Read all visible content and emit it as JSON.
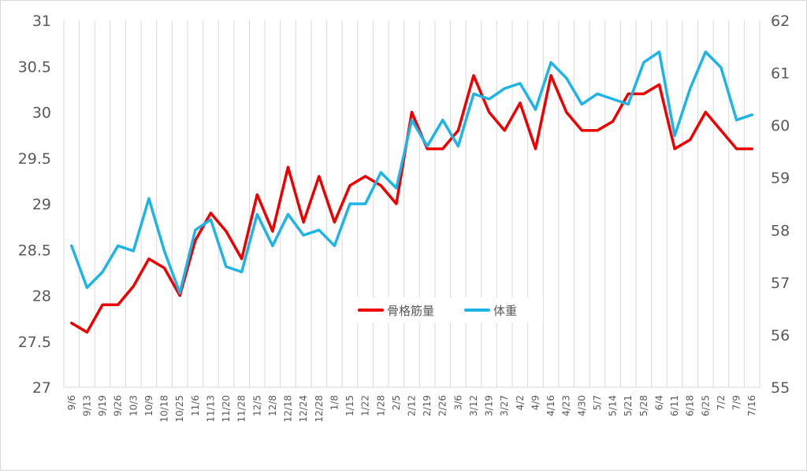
{
  "chart_data": {
    "type": "line",
    "title": "",
    "xlabel": "",
    "ylabel": "",
    "categories": [
      "9/6",
      "9/13",
      "9/19",
      "9/26",
      "10/3",
      "10/9",
      "10/18",
      "10/25",
      "11/6",
      "11/13",
      "11/20",
      "11/28",
      "12/5",
      "12/8",
      "12/18",
      "12/24",
      "12/28",
      "1/8",
      "1/15",
      "1/22",
      "1/28",
      "2/5",
      "2/12",
      "2/19",
      "2/26",
      "3/6",
      "3/12",
      "3/19",
      "3/27",
      "4/2",
      "4/9",
      "4/16",
      "4/23",
      "4/30",
      "5/7",
      "5/14",
      "5/21",
      "5/28",
      "6/4",
      "6/11",
      "6/18",
      "6/25",
      "7/2",
      "7/9",
      "7/16"
    ],
    "ylim": [
      27,
      31
    ],
    "y_ticks": [
      "27",
      "27.5",
      "28",
      "28.5",
      "29",
      "29.5",
      "30",
      "30.5",
      "31"
    ],
    "y2lim": [
      55,
      62
    ],
    "y2_ticks": [
      "55",
      "56",
      "57",
      "58",
      "59",
      "60",
      "61",
      "62"
    ],
    "grid": "vertical",
    "legend_position": "center",
    "series": [
      {
        "name": "骨格筋量",
        "axis": "left",
        "color": "#ee0000",
        "values": [
          27.7,
          27.6,
          27.9,
          27.9,
          28.1,
          28.4,
          28.3,
          28.0,
          28.6,
          28.9,
          28.7,
          28.4,
          29.1,
          28.7,
          29.4,
          28.8,
          29.3,
          28.8,
          29.2,
          29.3,
          29.2,
          29.0,
          30.0,
          29.6,
          29.6,
          29.8,
          30.4,
          30.0,
          29.8,
          30.1,
          29.6,
          30.4,
          30.0,
          29.8,
          29.8,
          29.9,
          30.2,
          30.2,
          30.3,
          29.6,
          29.7,
          30.0,
          29.8,
          29.6,
          29.6
        ]
      },
      {
        "name": "体重",
        "axis": "right",
        "color": "#1eb4e6",
        "values": [
          57.7,
          56.9,
          57.2,
          57.7,
          57.6,
          58.6,
          57.6,
          56.8,
          58.0,
          58.2,
          57.3,
          57.2,
          58.3,
          57.7,
          58.3,
          57.9,
          58.0,
          57.7,
          58.5,
          58.5,
          59.1,
          58.8,
          60.1,
          59.6,
          60.1,
          59.6,
          60.6,
          60.5,
          60.7,
          60.8,
          60.3,
          61.2,
          60.9,
          60.4,
          60.6,
          60.5,
          60.4,
          61.2,
          61.4,
          59.8,
          60.7,
          61.4,
          61.1,
          60.1,
          60.2
        ]
      }
    ]
  }
}
